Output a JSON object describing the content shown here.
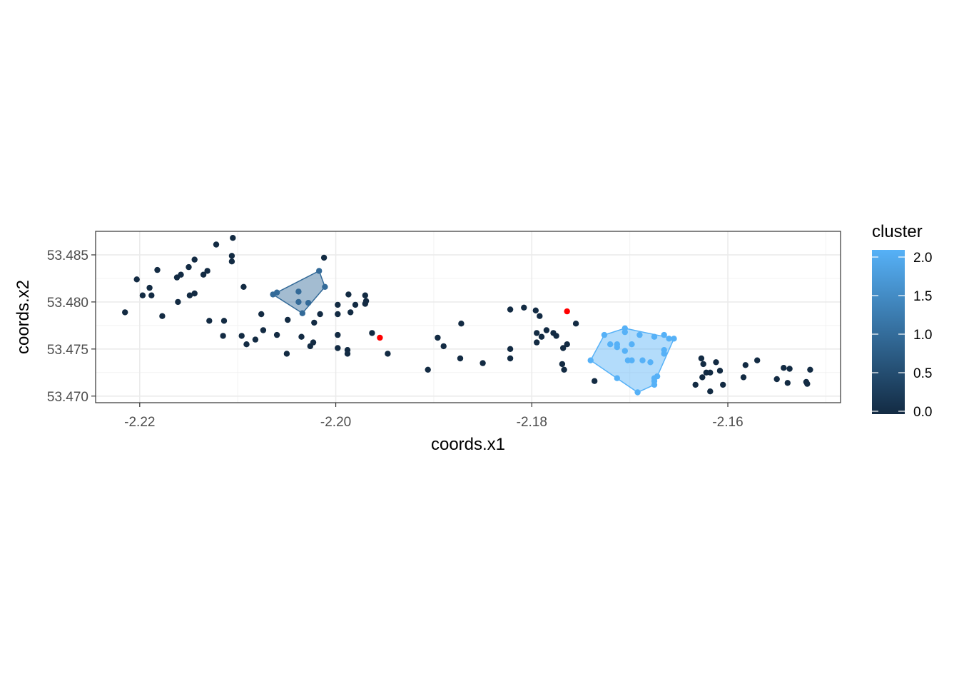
{
  "chart_data": {
    "type": "scatter",
    "xlabel": "coords.x1",
    "ylabel": "coords.x2",
    "xlim": [
      -2.2245,
      -2.1485
    ],
    "ylim": [
      53.4693,
      53.4875
    ],
    "x_ticks": [
      -2.22,
      -2.2,
      -2.18,
      -2.16
    ],
    "x_tick_labels": [
      "-2.22",
      "-2.20",
      "-2.18",
      "-2.16"
    ],
    "y_ticks": [
      53.47,
      53.475,
      53.48,
      53.485
    ],
    "y_tick_labels": [
      "53.470",
      "53.475",
      "53.480",
      "53.485"
    ],
    "grid": true,
    "legend": {
      "title": "cluster",
      "position": "right",
      "type": "colorbar",
      "range": [
        0,
        2
      ],
      "ticks": [
        0,
        0.5,
        1,
        1.5,
        2
      ],
      "tick_labels": [
        "0.0",
        "0.5",
        "1.0",
        "1.5",
        "2.0"
      ],
      "color_low": "#132B43",
      "color_high": "#56B1F7"
    },
    "points": {
      "cluster_0": [
        [
          -2.2215,
          53.4789
        ],
        [
          -2.2203,
          53.4824
        ],
        [
          -2.2197,
          53.4807
        ],
        [
          -2.219,
          53.4815
        ],
        [
          -2.2188,
          53.4807
        ],
        [
          -2.2182,
          53.4834
        ],
        [
          -2.2177,
          53.4785
        ],
        [
          -2.2162,
          53.4826
        ],
        [
          -2.2158,
          53.4829
        ],
        [
          -2.215,
          53.4837
        ],
        [
          -2.2144,
          53.4845
        ],
        [
          -2.2135,
          53.4829
        ],
        [
          -2.2131,
          53.4833
        ],
        [
          -2.2161,
          53.48
        ],
        [
          -2.2149,
          53.4807
        ],
        [
          -2.2144,
          53.4809
        ],
        [
          -2.2129,
          53.478
        ],
        [
          -2.2122,
          53.4861
        ],
        [
          -2.2114,
          53.478
        ],
        [
          -2.2115,
          53.4764
        ],
        [
          -2.2105,
          53.4868
        ],
        [
          -2.2106,
          53.4849
        ],
        [
          -2.2106,
          53.4843
        ],
        [
          -2.2094,
          53.4816
        ],
        [
          -2.2096,
          53.4764
        ],
        [
          -2.2091,
          53.4755
        ],
        [
          -2.2082,
          53.476
        ],
        [
          -2.2076,
          53.4787
        ],
        [
          -2.2074,
          53.477
        ],
        [
          -2.206,
          53.4765
        ],
        [
          -2.205,
          53.4745
        ],
        [
          -2.2049,
          53.4781
        ],
        [
          -2.2035,
          53.4763
        ],
        [
          -2.2026,
          53.4753
        ],
        [
          -2.2023,
          53.4757
        ],
        [
          -2.2022,
          53.4778
        ],
        [
          -2.2016,
          53.4787
        ],
        [
          -2.2012,
          53.4847
        ],
        [
          -2.1998,
          53.4797
        ],
        [
          -2.1998,
          53.4787
        ],
        [
          -2.1998,
          53.4765
        ],
        [
          -2.1998,
          53.4751
        ],
        [
          -2.1988,
          53.4749
        ],
        [
          -2.1988,
          53.4745
        ],
        [
          -2.1987,
          53.4808
        ],
        [
          -2.1985,
          53.4789
        ],
        [
          -2.198,
          53.4797
        ],
        [
          -2.197,
          53.4807
        ],
        [
          -2.197,
          53.4798
        ],
        [
          -2.1969,
          53.4801
        ],
        [
          -2.1963,
          53.4767
        ],
        [
          -2.1947,
          53.4745
        ],
        [
          -2.1906,
          53.4728
        ],
        [
          -2.1896,
          53.4762
        ],
        [
          -2.189,
          53.4753
        ],
        [
          -2.1873,
          53.474
        ],
        [
          -2.1872,
          53.4777
        ],
        [
          -2.185,
          53.4735
        ],
        [
          -2.1822,
          53.4792
        ],
        [
          -2.1822,
          53.475
        ],
        [
          -2.1822,
          53.474
        ],
        [
          -2.1808,
          53.4794
        ],
        [
          -2.1796,
          53.4791
        ],
        [
          -2.1792,
          53.4785
        ],
        [
          -2.1795,
          53.4767
        ],
        [
          -2.1795,
          53.4757
        ],
        [
          -2.179,
          53.4763
        ],
        [
          -2.1785,
          53.477
        ],
        [
          -2.1778,
          53.4767
        ],
        [
          -2.1775,
          53.4764
        ],
        [
          -2.1769,
          53.4734
        ],
        [
          -2.1767,
          53.4728
        ],
        [
          -2.1768,
          53.4751
        ],
        [
          -2.1764,
          53.4755
        ],
        [
          -2.1755,
          53.4777
        ],
        [
          -2.1736,
          53.4716
        ],
        [
          -2.1633,
          53.4712
        ],
        [
          -2.1627,
          53.474
        ],
        [
          -2.1625,
          53.4734
        ],
        [
          -2.1626,
          53.472
        ],
        [
          -2.1622,
          53.4725
        ],
        [
          -2.1618,
          53.4725
        ],
        [
          -2.1618,
          53.4705
        ],
        [
          -2.1612,
          53.4736
        ],
        [
          -2.1608,
          53.4727
        ],
        [
          -2.1605,
          53.4712
        ],
        [
          -2.1584,
          53.472
        ],
        [
          -2.1582,
          53.4733
        ],
        [
          -2.157,
          53.4738
        ],
        [
          -2.155,
          53.4718
        ],
        [
          -2.1543,
          53.473
        ],
        [
          -2.1537,
          53.4729
        ],
        [
          -2.1539,
          53.4714
        ],
        [
          -2.152,
          53.4715
        ],
        [
          -2.1519,
          53.4713
        ],
        [
          -2.1516,
          53.4728
        ]
      ],
      "cluster_1": [
        [
          -2.2064,
          53.4808
        ],
        [
          -2.206,
          53.481
        ],
        [
          -2.2038,
          53.4811
        ],
        [
          -2.2038,
          53.48
        ],
        [
          -2.2034,
          53.4788
        ],
        [
          -2.2028,
          53.4799
        ],
        [
          -2.2017,
          53.4833
        ],
        [
          -2.2011,
          53.4816
        ]
      ],
      "cluster_2": [
        [
          -2.174,
          53.4738
        ],
        [
          -2.1726,
          53.4765
        ],
        [
          -2.172,
          53.4755
        ],
        [
          -2.1713,
          53.4755
        ],
        [
          -2.1713,
          53.4752
        ],
        [
          -2.1713,
          53.4719
        ],
        [
          -2.1705,
          53.4772
        ],
        [
          -2.1705,
          53.4768
        ],
        [
          -2.1705,
          53.4748
        ],
        [
          -2.1702,
          53.4738
        ],
        [
          -2.1698,
          53.4755
        ],
        [
          -2.1698,
          53.4738
        ],
        [
          -2.1692,
          53.4704
        ],
        [
          -2.169,
          53.4765
        ],
        [
          -2.1687,
          53.4738
        ],
        [
          -2.1679,
          53.4736
        ],
        [
          -2.1675,
          53.4763
        ],
        [
          -2.1675,
          53.4719
        ],
        [
          -2.1675,
          53.4716
        ],
        [
          -2.1675,
          53.4712
        ],
        [
          -2.1672,
          53.4721
        ],
        [
          -2.1665,
          53.4765
        ],
        [
          -2.1665,
          53.4749
        ],
        [
          -2.1665,
          53.4745
        ],
        [
          -2.166,
          53.4761
        ],
        [
          -2.1655,
          53.4761
        ]
      ],
      "noise_red": [
        [
          -2.1955,
          53.4762
        ],
        [
          -2.1764,
          53.479
        ]
      ]
    },
    "hulls": {
      "cluster_1": [
        [
          -2.2064,
          53.4808
        ],
        [
          -2.2017,
          53.4833
        ],
        [
          -2.2011,
          53.4816
        ],
        [
          -2.2034,
          53.4788
        ]
      ],
      "cluster_2": [
        [
          -2.174,
          53.4738
        ],
        [
          -2.1726,
          53.4765
        ],
        [
          -2.1705,
          53.4772
        ],
        [
          -2.1655,
          53.4761
        ],
        [
          -2.1672,
          53.4721
        ],
        [
          -2.1675,
          53.4712
        ],
        [
          -2.1692,
          53.4704
        ]
      ]
    },
    "colors": {
      "cluster_0": "#132B43",
      "cluster_1": "#336A98",
      "cluster_2": "#56B1F7",
      "noise": "#FF0000",
      "hull_1_fill": "#336A98",
      "hull_2_fill": "#56B1F7"
    }
  }
}
